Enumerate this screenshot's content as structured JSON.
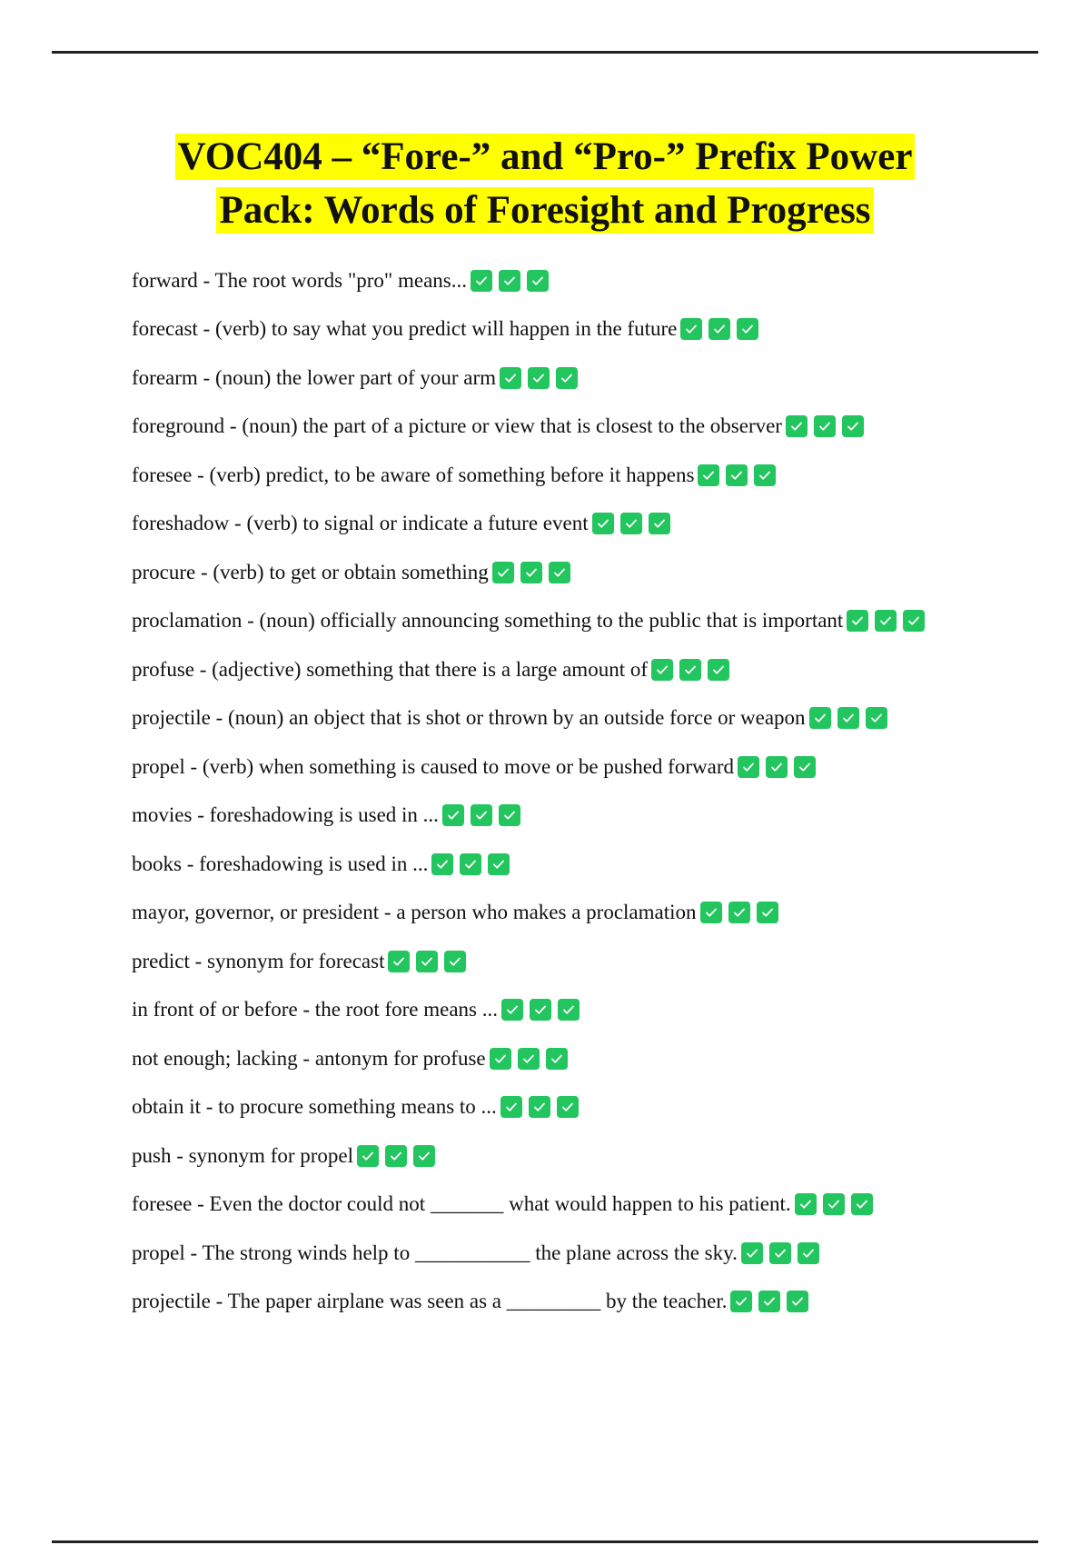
{
  "title": {
    "line1": "VOC404 – “Fore-” and “Pro-” Prefix Power",
    "line2": "Pack: Words of Foresight and Progress"
  },
  "highlight_color": "#ffff00",
  "check_color": "#22c55e",
  "check_icon": "white-heavy-check-mark",
  "items": [
    "forward - The root words \"pro\" means...",
    "forecast - (verb) to say what you predict will happen in the future",
    "forearm - (noun) the lower part of your arm",
    "foreground - (noun) the part of a picture or view that is closest to the observer",
    "foresee - (verb) predict, to be aware of something before it happens",
    "foreshadow - (verb) to signal or indicate a future event",
    "procure - (verb) to get or obtain something",
    "proclamation - (noun) officially announcing something to the public that is important",
    "profuse - (adjective) something that there is a large amount of",
    "projectile - (noun) an object that is shot or thrown by an outside force or weapon",
    "propel - (verb) when something is caused to move or be pushed forward",
    "movies - foreshadowing is used in ...",
    "books - foreshadowing is used in ...",
    "mayor, governor, or president - a person who makes a proclamation",
    "predict - synonym for forecast",
    "in front of or before - the root fore means ...",
    "not enough; lacking - antonym for profuse",
    "obtain it - to procure something means to ...",
    "push - synonym for propel",
    "foresee - Even the doctor could not _______ what would happen to his patient.",
    "propel - The strong winds help to ___________ the plane across the sky.",
    "projectile - The paper airplane was seen as a _________ by the teacher."
  ]
}
